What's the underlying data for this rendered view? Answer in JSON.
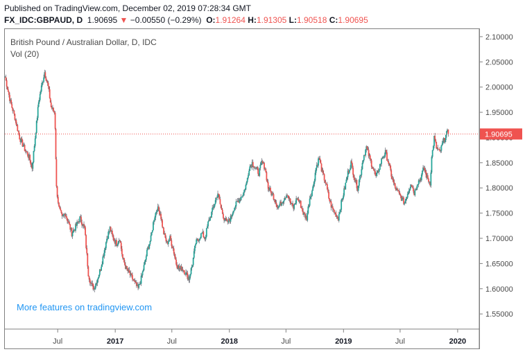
{
  "header": {
    "published": "Published on TradingView.com, December 02, 2019 07:28:34 GMT",
    "symbol": "FX_IDC:GBPAUD, D",
    "last": "1.90695",
    "change_arrow": "▼",
    "change": "−0.00550 (−0.29%)",
    "open_label": "O:",
    "open": "1.91264",
    "high_label": "H:",
    "high": "1.91305",
    "low_label": "L:",
    "low": "1.90518",
    "close_label": "C:",
    "close": "1.90695"
  },
  "chart_title": "British Pound / Australian Dollar, D, IDC",
  "volume_label": "Vol (20)",
  "promo": "More features on tradingview.com",
  "colors": {
    "up": "#26a69a",
    "down": "#ef5350",
    "wick": "#5d606b",
    "price_line": "#ef5350",
    "promo": "#2196f3"
  },
  "chart_data": {
    "type": "candlestick",
    "title": "British Pound / Australian Dollar, D, IDC",
    "ylim": [
      1.52,
      2.115
    ],
    "y_ticks": [
      "2.10000",
      "2.05000",
      "2.00000",
      "1.95000",
      "1.90000",
      "1.85000",
      "1.80000",
      "1.75000",
      "1.70000",
      "1.65000",
      "1.60000",
      "1.55000"
    ],
    "x_ticks": [
      {
        "label": "Jul",
        "date": "2016-07-01",
        "bold": false
      },
      {
        "label": "2017",
        "date": "2017-01-01",
        "bold": true
      },
      {
        "label": "Jul",
        "date": "2017-07-01",
        "bold": false
      },
      {
        "label": "2018",
        "date": "2018-01-01",
        "bold": true
      },
      {
        "label": "Jul",
        "date": "2018-07-01",
        "bold": false
      },
      {
        "label": "2019",
        "date": "2019-01-01",
        "bold": true
      },
      {
        "label": "Jul",
        "date": "2019-07-01",
        "bold": false
      },
      {
        "label": "2020",
        "date": "2020-01-01",
        "bold": true
      }
    ],
    "x_range": [
      "2016-01-14",
      "2020-03-10"
    ],
    "last_price": 1.90695,
    "last_price_label": "1.90695",
    "series": [
      {
        "date": "2016-01-15",
        "close": 2.02
      },
      {
        "date": "2016-02-01",
        "close": 1.97
      },
      {
        "date": "2016-02-15",
        "close": 1.94
      },
      {
        "date": "2016-03-01",
        "close": 1.9
      },
      {
        "date": "2016-03-15",
        "close": 1.88
      },
      {
        "date": "2016-04-01",
        "close": 1.86
      },
      {
        "date": "2016-04-10",
        "close": 1.84
      },
      {
        "date": "2016-04-20",
        "close": 1.9
      },
      {
        "date": "2016-05-01",
        "close": 1.97
      },
      {
        "date": "2016-05-10",
        "close": 2.0
      },
      {
        "date": "2016-05-20",
        "close": 2.03
      },
      {
        "date": "2016-06-01",
        "close": 2.0
      },
      {
        "date": "2016-06-10",
        "close": 1.96
      },
      {
        "date": "2016-06-20",
        "close": 1.95
      },
      {
        "date": "2016-06-23",
        "close": 1.92
      },
      {
        "date": "2016-06-27",
        "close": 1.8
      },
      {
        "date": "2016-07-05",
        "close": 1.76
      },
      {
        "date": "2016-07-15",
        "close": 1.74
      },
      {
        "date": "2016-07-25",
        "close": 1.75
      },
      {
        "date": "2016-08-05",
        "close": 1.73
      },
      {
        "date": "2016-08-15",
        "close": 1.71
      },
      {
        "date": "2016-08-25",
        "close": 1.72
      },
      {
        "date": "2016-09-10",
        "close": 1.74
      },
      {
        "date": "2016-09-25",
        "close": 1.72
      },
      {
        "date": "2016-10-07",
        "close": 1.63
      },
      {
        "date": "2016-10-15",
        "close": 1.61
      },
      {
        "date": "2016-10-25",
        "close": 1.6
      },
      {
        "date": "2016-11-05",
        "close": 1.62
      },
      {
        "date": "2016-11-15",
        "close": 1.64
      },
      {
        "date": "2016-11-25",
        "close": 1.67
      },
      {
        "date": "2016-12-05",
        "close": 1.7
      },
      {
        "date": "2016-12-15",
        "close": 1.72
      },
      {
        "date": "2016-12-25",
        "close": 1.7
      },
      {
        "date": "2017-01-05",
        "close": 1.69
      },
      {
        "date": "2017-01-15",
        "close": 1.7
      },
      {
        "date": "2017-01-25",
        "close": 1.66
      },
      {
        "date": "2017-02-05",
        "close": 1.64
      },
      {
        "date": "2017-02-15",
        "close": 1.63
      },
      {
        "date": "2017-02-25",
        "close": 1.62
      },
      {
        "date": "2017-03-05",
        "close": 1.61
      },
      {
        "date": "2017-03-15",
        "close": 1.6
      },
      {
        "date": "2017-03-25",
        "close": 1.62
      },
      {
        "date": "2017-04-05",
        "close": 1.65
      },
      {
        "date": "2017-04-15",
        "close": 1.68
      },
      {
        "date": "2017-04-25",
        "close": 1.7
      },
      {
        "date": "2017-05-05",
        "close": 1.74
      },
      {
        "date": "2017-05-15",
        "close": 1.76
      },
      {
        "date": "2017-05-25",
        "close": 1.75
      },
      {
        "date": "2017-06-05",
        "close": 1.71
      },
      {
        "date": "2017-06-15",
        "close": 1.69
      },
      {
        "date": "2017-06-25",
        "close": 1.7
      },
      {
        "date": "2017-07-05",
        "close": 1.68
      },
      {
        "date": "2017-07-15",
        "close": 1.65
      },
      {
        "date": "2017-07-25",
        "close": 1.64
      },
      {
        "date": "2017-08-05",
        "close": 1.64
      },
      {
        "date": "2017-08-15",
        "close": 1.63
      },
      {
        "date": "2017-08-25",
        "close": 1.62
      },
      {
        "date": "2017-09-05",
        "close": 1.65
      },
      {
        "date": "2017-09-15",
        "close": 1.69
      },
      {
        "date": "2017-09-25",
        "close": 1.7
      },
      {
        "date": "2017-10-05",
        "close": 1.71
      },
      {
        "date": "2017-10-15",
        "close": 1.7
      },
      {
        "date": "2017-10-25",
        "close": 1.73
      },
      {
        "date": "2017-11-05",
        "close": 1.75
      },
      {
        "date": "2017-11-15",
        "close": 1.77
      },
      {
        "date": "2017-11-25",
        "close": 1.79
      },
      {
        "date": "2017-12-05",
        "close": 1.76
      },
      {
        "date": "2017-12-15",
        "close": 1.74
      },
      {
        "date": "2017-12-25",
        "close": 1.73
      },
      {
        "date": "2018-01-05",
        "close": 1.74
      },
      {
        "date": "2018-01-15",
        "close": 1.76
      },
      {
        "date": "2018-01-25",
        "close": 1.77
      },
      {
        "date": "2018-02-05",
        "close": 1.78
      },
      {
        "date": "2018-02-15",
        "close": 1.79
      },
      {
        "date": "2018-02-25",
        "close": 1.81
      },
      {
        "date": "2018-03-05",
        "close": 1.84
      },
      {
        "date": "2018-03-15",
        "close": 1.85
      },
      {
        "date": "2018-03-25",
        "close": 1.84
      },
      {
        "date": "2018-04-05",
        "close": 1.83
      },
      {
        "date": "2018-04-15",
        "close": 1.85
      },
      {
        "date": "2018-04-25",
        "close": 1.84
      },
      {
        "date": "2018-05-05",
        "close": 1.8
      },
      {
        "date": "2018-05-15",
        "close": 1.79
      },
      {
        "date": "2018-05-25",
        "close": 1.78
      },
      {
        "date": "2018-06-05",
        "close": 1.76
      },
      {
        "date": "2018-06-15",
        "close": 1.77
      },
      {
        "date": "2018-06-25",
        "close": 1.78
      },
      {
        "date": "2018-07-05",
        "close": 1.79
      },
      {
        "date": "2018-07-15",
        "close": 1.77
      },
      {
        "date": "2018-07-25",
        "close": 1.76
      },
      {
        "date": "2018-08-05",
        "close": 1.78
      },
      {
        "date": "2018-08-15",
        "close": 1.77
      },
      {
        "date": "2018-08-25",
        "close": 1.75
      },
      {
        "date": "2018-09-05",
        "close": 1.74
      },
      {
        "date": "2018-09-15",
        "close": 1.78
      },
      {
        "date": "2018-09-25",
        "close": 1.8
      },
      {
        "date": "2018-10-05",
        "close": 1.84
      },
      {
        "date": "2018-10-15",
        "close": 1.86
      },
      {
        "date": "2018-10-25",
        "close": 1.83
      },
      {
        "date": "2018-11-05",
        "close": 1.81
      },
      {
        "date": "2018-11-15",
        "close": 1.78
      },
      {
        "date": "2018-11-25",
        "close": 1.76
      },
      {
        "date": "2018-12-05",
        "close": 1.75
      },
      {
        "date": "2018-12-15",
        "close": 1.74
      },
      {
        "date": "2018-12-25",
        "close": 1.77
      },
      {
        "date": "2019-01-05",
        "close": 1.8
      },
      {
        "date": "2019-01-15",
        "close": 1.83
      },
      {
        "date": "2019-01-25",
        "close": 1.85
      },
      {
        "date": "2019-02-05",
        "close": 1.82
      },
      {
        "date": "2019-02-15",
        "close": 1.8
      },
      {
        "date": "2019-02-25",
        "close": 1.83
      },
      {
        "date": "2019-03-05",
        "close": 1.86
      },
      {
        "date": "2019-03-15",
        "close": 1.88
      },
      {
        "date": "2019-03-25",
        "close": 1.86
      },
      {
        "date": "2019-04-05",
        "close": 1.84
      },
      {
        "date": "2019-04-15",
        "close": 1.82
      },
      {
        "date": "2019-04-25",
        "close": 1.84
      },
      {
        "date": "2019-05-05",
        "close": 1.86
      },
      {
        "date": "2019-05-15",
        "close": 1.87
      },
      {
        "date": "2019-05-25",
        "close": 1.85
      },
      {
        "date": "2019-06-05",
        "close": 1.82
      },
      {
        "date": "2019-06-15",
        "close": 1.8
      },
      {
        "date": "2019-06-25",
        "close": 1.79
      },
      {
        "date": "2019-07-05",
        "close": 1.78
      },
      {
        "date": "2019-07-15",
        "close": 1.77
      },
      {
        "date": "2019-07-25",
        "close": 1.79
      },
      {
        "date": "2019-08-05",
        "close": 1.81
      },
      {
        "date": "2019-08-15",
        "close": 1.79
      },
      {
        "date": "2019-08-25",
        "close": 1.81
      },
      {
        "date": "2019-09-05",
        "close": 1.82
      },
      {
        "date": "2019-09-15",
        "close": 1.84
      },
      {
        "date": "2019-09-25",
        "close": 1.82
      },
      {
        "date": "2019-10-05",
        "close": 1.81
      },
      {
        "date": "2019-10-10",
        "close": 1.86
      },
      {
        "date": "2019-10-18",
        "close": 1.9
      },
      {
        "date": "2019-10-25",
        "close": 1.88
      },
      {
        "date": "2019-11-05",
        "close": 1.87
      },
      {
        "date": "2019-11-15",
        "close": 1.89
      },
      {
        "date": "2019-11-22",
        "close": 1.9
      },
      {
        "date": "2019-11-29",
        "close": 1.91
      },
      {
        "date": "2019-12-02",
        "close": 1.90695
      }
    ]
  }
}
